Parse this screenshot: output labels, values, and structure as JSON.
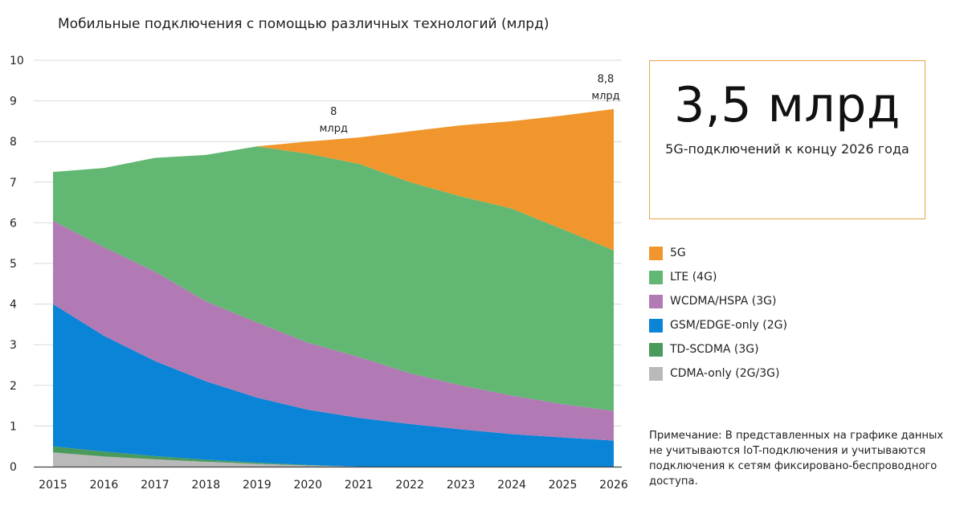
{
  "chart_data": {
    "type": "area",
    "stacked": true,
    "title": "Мобильные подключения с помощью различных технологий (млрд)",
    "xlabel": "",
    "ylabel": "",
    "x": [
      "2015",
      "2016",
      "2017",
      "2018",
      "2019",
      "2020",
      "2021",
      "2022",
      "2023",
      "2024",
      "2025",
      "2026"
    ],
    "ylim": [
      0,
      10
    ],
    "yticks": [
      "0",
      "1",
      "2",
      "3",
      "4",
      "5",
      "6",
      "7",
      "8",
      "9",
      "10"
    ],
    "grid": true,
    "series": [
      {
        "name": "CDMA-only (2G/3G)",
        "color": "#b9b9b9",
        "values": [
          0.35,
          0.25,
          0.18,
          0.12,
          0.07,
          0.03,
          0.0,
          0.0,
          0.0,
          0.0,
          0.0,
          0.0
        ]
      },
      {
        "name": "TD-SCDMA (3G)",
        "color": "#4a9a5c",
        "values": [
          0.15,
          0.12,
          0.08,
          0.05,
          0.03,
          0.01,
          0.0,
          0.0,
          0.0,
          0.0,
          0.0,
          0.0
        ]
      },
      {
        "name": "GSM/EDGE-only (2G)",
        "color": "#0a84d6",
        "values": [
          3.5,
          2.85,
          2.34,
          1.93,
          1.6,
          1.36,
          1.2,
          1.05,
          0.92,
          0.8,
          0.72,
          0.64
        ]
      },
      {
        "name": "WCDMA/HSPA (3G)",
        "color": "#b27ab5",
        "values": [
          2.05,
          2.18,
          2.2,
          1.97,
          1.85,
          1.65,
          1.5,
          1.25,
          1.08,
          0.95,
          0.82,
          0.73
        ]
      },
      {
        "name": "LTE (4G)",
        "color": "#62b873",
        "values": [
          1.2,
          1.95,
          2.8,
          3.6,
          4.33,
          4.65,
          4.75,
          4.7,
          4.65,
          4.6,
          4.3,
          3.95
        ]
      },
      {
        "name": "5G",
        "color": "#f0962d",
        "values": [
          0.0,
          0.0,
          0.0,
          0.0,
          0.0,
          0.3,
          0.65,
          1.25,
          1.75,
          2.15,
          2.8,
          3.48
        ]
      }
    ],
    "annotations": [
      {
        "x": "2020",
        "y": 8,
        "line1": "8",
        "line2": "млрд"
      },
      {
        "x": "2026",
        "y": 8.8,
        "line1": "8,8",
        "line2": "млрд"
      }
    ]
  },
  "callout": {
    "value": "3,5 млрд",
    "caption": "5G-подключений к концу 2026 года",
    "border_color": "#e8a24a"
  },
  "legend": [
    {
      "label": "5G",
      "color": "#f0962d"
    },
    {
      "label": "LTE (4G)",
      "color": "#62b873"
    },
    {
      "label": "WCDMA/HSPA (3G)",
      "color": "#b27ab5"
    },
    {
      "label": "GSM/EDGE-only (2G)",
      "color": "#0a84d6"
    },
    {
      "label": "TD-SCDMA (3G)",
      "color": "#4a9a5c"
    },
    {
      "label": "CDMA-only (2G/3G)",
      "color": "#b9b9b9"
    }
  ],
  "note": "Примечание: В представленных на графике данных не учитываются IoT-подключения и учитываются подключения к сетям фиксировано-беспроводного доступа."
}
